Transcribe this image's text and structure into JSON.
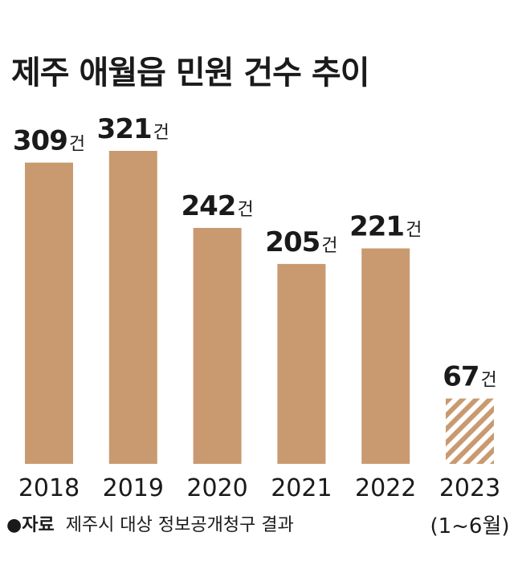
{
  "title": "제주 애월읍 민원 건수 추이",
  "source": {
    "bullet": "●",
    "label": "자료",
    "text": "제주시 대상 정보공개청구 결과"
  },
  "colors": {
    "bar": "#c99a70",
    "text": "#1a1a1a",
    "hatch_stripe": "#c99a70",
    "hatch_bg": "#ffffff"
  },
  "chart_data": {
    "type": "bar",
    "unit": "건",
    "categories": [
      "2018",
      "2019",
      "2020",
      "2021",
      "2022",
      "2023"
    ],
    "category_notes": [
      "",
      "",
      "",
      "",
      "",
      "(1~6월)"
    ],
    "values": [
      309,
      321,
      242,
      205,
      221,
      67
    ],
    "value_labels": [
      "309",
      "321",
      "242",
      "205",
      "221",
      "67"
    ],
    "partial": [
      false,
      false,
      false,
      false,
      false,
      true
    ],
    "ylim": [
      0,
      321
    ],
    "grid": false,
    "legend": "none"
  }
}
